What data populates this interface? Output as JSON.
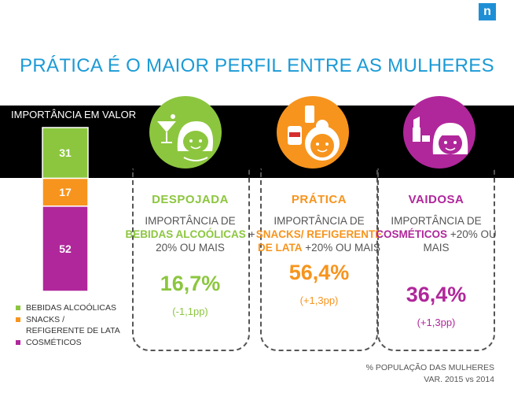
{
  "title": "PRÁTICA É O MAIOR PERFIL ENTRE AS MULHERES",
  "brand": "n",
  "colors": {
    "green": "#8cc63f",
    "orange": "#f7941d",
    "purple": "#b0279b",
    "blue": "#1b9ad6"
  },
  "chart_data": {
    "type": "bar",
    "title": "IMPORTÂNCIA EM VALOR",
    "stacked": true,
    "categories": [
      "BEBIDAS ALCOÓLICAS",
      "SNACKS / REFIGERENTE DE LATA",
      "COSMÉTICOS"
    ],
    "values": [
      31,
      17,
      52
    ],
    "legend": [
      "BEBIDAS ALCOÓLICAS",
      "SNACKS /\nREFIGERENTE  DE LATA",
      "COSMÉTICOS"
    ]
  },
  "profiles": [
    {
      "name": "DESPOJADA",
      "icon": "cocktail-icon",
      "desc_pre": "IMPORTÂNCIA DE",
      "desc_hl": "BEBIDAS ALCOÓLICAS",
      "desc_post": "+ 20% OU MAIS",
      "value": "16,7%",
      "change": "(-1,1pp)"
    },
    {
      "name": "PRÁTICA",
      "icon": "snack-can-icon",
      "desc_pre": "IMPORTÂNCIA DE",
      "desc_hl": "SNACKS/ REFIGERENTE DE LATA",
      "desc_post": "+20% OU MAIS",
      "value": "56,4%",
      "change": "(+1,3pp)"
    },
    {
      "name": "VAIDOSA",
      "icon": "lipstick-icon",
      "desc_pre": "IMPORTÂNCIA DE",
      "desc_hl": "COSMÉTICOS",
      "desc_post": "+20% OU MAIS",
      "value": "36,4%",
      "change": "(+1,3pp)"
    }
  ],
  "footnote": {
    "line1": "% POPULAÇÃO DAS MULHERES",
    "line2": "VAR. 2015  vs 2014"
  }
}
